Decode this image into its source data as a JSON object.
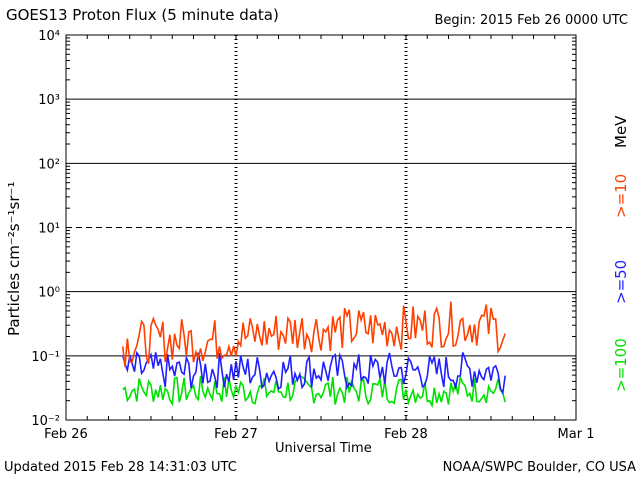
{
  "header": {
    "title": "GOES13 Proton Flux (5 minute data)",
    "begin": "Begin: 2015 Feb 26 0000 UTC"
  },
  "footer": {
    "updated": "Updated 2015 Feb 28 14:31:03 UTC",
    "credit": "NOAA/SWPC Boulder, CO USA"
  },
  "legend": {
    "unit": "MeV",
    "entries": [
      {
        "label": ">=10",
        "color": "#ff4000"
      },
      {
        "label": ">=50",
        "color": "#2020ff"
      },
      {
        "label": ">=100",
        "color": "#00e000"
      }
    ]
  },
  "chart_data": {
    "type": "line",
    "ylabel": "Particles cm⁻²s⁻¹sr⁻¹",
    "xlabel": "Universal Time",
    "yscale": "log",
    "ylim": [
      0.01,
      10000
    ],
    "yticks": [
      {
        "value": 10000,
        "label": "10⁴"
      },
      {
        "value": 1000,
        "label": "10³"
      },
      {
        "value": 100,
        "label": "10²"
      },
      {
        "value": 10,
        "label": "10¹"
      },
      {
        "value": 1,
        "label": "10⁰"
      },
      {
        "value": 0.1,
        "label": "10⁻¹"
      },
      {
        "value": 0.01,
        "label": "10⁻²"
      }
    ],
    "xlim": [
      "2015-02-26T00:00Z",
      "2015-03-01T00:00Z"
    ],
    "xticks": [
      {
        "value": "2015-02-26T00:00Z",
        "label": "Feb 26"
      },
      {
        "value": "2015-02-27T00:00Z",
        "label": "Feb 27"
      },
      {
        "value": "2015-02-28T00:00Z",
        "label": "Feb 28"
      },
      {
        "value": "2015-03-01T00:00Z",
        "label": "Mar 1"
      }
    ],
    "threshold_line": 10,
    "series": [
      {
        "name": ">=10",
        "color": "#ff4000",
        "x": [
          "2015-02-26T08:00Z",
          "2015-02-26T12:00Z",
          "2015-02-26T16:00Z",
          "2015-02-26T20:00Z",
          "2015-02-27T00:00Z",
          "2015-02-27T04:00Z",
          "2015-02-27T08:00Z",
          "2015-02-27T12:00Z",
          "2015-02-27T16:00Z",
          "2015-02-27T20:00Z",
          "2015-02-28T00:00Z",
          "2015-02-28T04:00Z",
          "2015-02-28T08:00Z",
          "2015-02-28T12:00Z",
          "2015-02-28T14:00Z"
        ],
        "values": [
          0.15,
          0.17,
          0.18,
          0.17,
          0.19,
          0.22,
          0.25,
          0.26,
          0.26,
          0.27,
          0.28,
          0.3,
          0.32,
          0.3,
          0.22
        ]
      },
      {
        "name": ">=50",
        "color": "#2020ff",
        "x": [
          "2015-02-26T08:00Z",
          "2015-02-26T12:00Z",
          "2015-02-26T16:00Z",
          "2015-02-26T20:00Z",
          "2015-02-27T00:00Z",
          "2015-02-27T04:00Z",
          "2015-02-27T08:00Z",
          "2015-02-27T12:00Z",
          "2015-02-27T16:00Z",
          "2015-02-27T20:00Z",
          "2015-02-28T00:00Z",
          "2015-02-28T04:00Z",
          "2015-02-28T08:00Z",
          "2015-02-28T12:00Z",
          "2015-02-28T14:00Z"
        ],
        "values": [
          0.06,
          0.06,
          0.055,
          0.06,
          0.06,
          0.055,
          0.06,
          0.06,
          0.055,
          0.06,
          0.06,
          0.055,
          0.06,
          0.06,
          0.05
        ]
      },
      {
        "name": ">=100",
        "color": "#00e000",
        "x": [
          "2015-02-26T08:00Z",
          "2015-02-26T12:00Z",
          "2015-02-26T16:00Z",
          "2015-02-26T20:00Z",
          "2015-02-27T00:00Z",
          "2015-02-27T04:00Z",
          "2015-02-27T08:00Z",
          "2015-02-27T12:00Z",
          "2015-02-27T16:00Z",
          "2015-02-27T20:00Z",
          "2015-02-28T00:00Z",
          "2015-02-28T04:00Z",
          "2015-02-28T08:00Z",
          "2015-02-28T12:00Z",
          "2015-02-28T14:00Z"
        ],
        "values": [
          0.03,
          0.03,
          0.028,
          0.03,
          0.03,
          0.028,
          0.03,
          0.03,
          0.028,
          0.03,
          0.03,
          0.028,
          0.03,
          0.03,
          0.028
        ]
      }
    ]
  }
}
